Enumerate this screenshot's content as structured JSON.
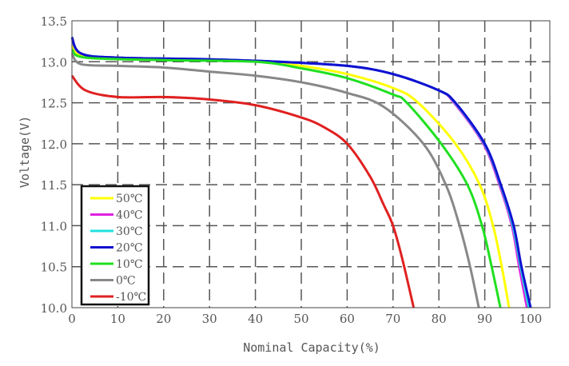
{
  "chart_data": {
    "type": "line",
    "title": "",
    "xlabel": "Nominal Capacity(%)",
    "ylabel": "Voltage(V)",
    "xlim": [
      0,
      100
    ],
    "ylim": [
      10.0,
      13.5
    ],
    "xticks": [
      "0",
      "10",
      "20",
      "30",
      "40",
      "50",
      "60",
      "70",
      "80",
      "90",
      "100"
    ],
    "yticks": [
      "10.0",
      "10.5",
      "11.0",
      "11.5",
      "12.0",
      "12.5",
      "13.0",
      "13.5"
    ],
    "grid": true,
    "legend_position": "bottom-left",
    "series": [
      {
        "name": "50℃",
        "color": "#ffff00",
        "x": [
          0,
          2,
          10,
          20,
          40,
          50,
          60,
          70,
          75.5,
          83.6,
          88.9,
          91.8,
          93.7,
          95.3
        ],
        "y": [
          13.2,
          13.08,
          13.05,
          13.03,
          13.01,
          12.95,
          12.85,
          12.68,
          12.5,
          12.0,
          11.5,
          11.0,
          10.5,
          10.0
        ]
      },
      {
        "name": "40℃",
        "color": "#e020e0",
        "x": [
          0,
          2,
          10,
          30,
          45,
          60,
          70,
          80,
          83.3,
          89.7,
          93.2,
          95.9,
          97.5,
          99.2
        ],
        "y": [
          13.28,
          13.1,
          13.05,
          13.03,
          13.0,
          12.95,
          12.85,
          12.65,
          12.5,
          12.0,
          11.5,
          11.0,
          10.5,
          10.0
        ]
      },
      {
        "name": "30℃",
        "color": "#20e0e0",
        "x": [
          0,
          2,
          10,
          30,
          45,
          60,
          70,
          80,
          83.5,
          89.9,
          93.4,
          96.1,
          97.8,
          99.6
        ],
        "y": [
          13.29,
          13.1,
          13.05,
          13.03,
          13.0,
          12.95,
          12.85,
          12.65,
          12.5,
          12.0,
          11.5,
          11.0,
          10.5,
          10.0
        ]
      },
      {
        "name": "20℃",
        "color": "#1010d0",
        "x": [
          0,
          2,
          10,
          30,
          45,
          60,
          70,
          80,
          83.6,
          90,
          93.5,
          96.3,
          98,
          100
        ],
        "y": [
          13.3,
          13.1,
          13.05,
          13.03,
          13.0,
          12.95,
          12.85,
          12.65,
          12.5,
          12.0,
          11.5,
          11.0,
          10.5,
          10.0
        ]
      },
      {
        "name": "10℃",
        "color": "#20e020",
        "x": [
          0,
          3,
          20,
          40,
          50,
          60,
          70,
          73,
          80.5,
          86.2,
          89.4,
          91.5,
          93.4
        ],
        "y": [
          13.15,
          13.05,
          13.02,
          13.0,
          12.92,
          12.8,
          12.6,
          12.5,
          12.0,
          11.5,
          11.0,
          10.5,
          10.0
        ]
      },
      {
        "name": "0℃",
        "color": "#888888",
        "x": [
          0,
          2,
          10,
          20,
          30,
          40,
          50,
          60,
          68,
          76.6,
          81.5,
          84.5,
          86.8,
          88.7
        ],
        "y": [
          13.1,
          12.97,
          12.95,
          12.93,
          12.88,
          12.83,
          12.75,
          12.62,
          12.45,
          12.0,
          11.5,
          11.0,
          10.5,
          10.0
        ]
      },
      {
        "name": "-10℃",
        "color": "#e02020",
        "x": [
          0,
          3,
          10,
          20,
          30,
          40,
          50,
          55,
          60,
          65,
          68,
          70,
          72,
          74.5
        ],
        "y": [
          12.83,
          12.65,
          12.57,
          12.57,
          12.54,
          12.47,
          12.32,
          12.2,
          12.0,
          11.6,
          11.25,
          11.0,
          10.6,
          10.0
        ]
      }
    ]
  }
}
